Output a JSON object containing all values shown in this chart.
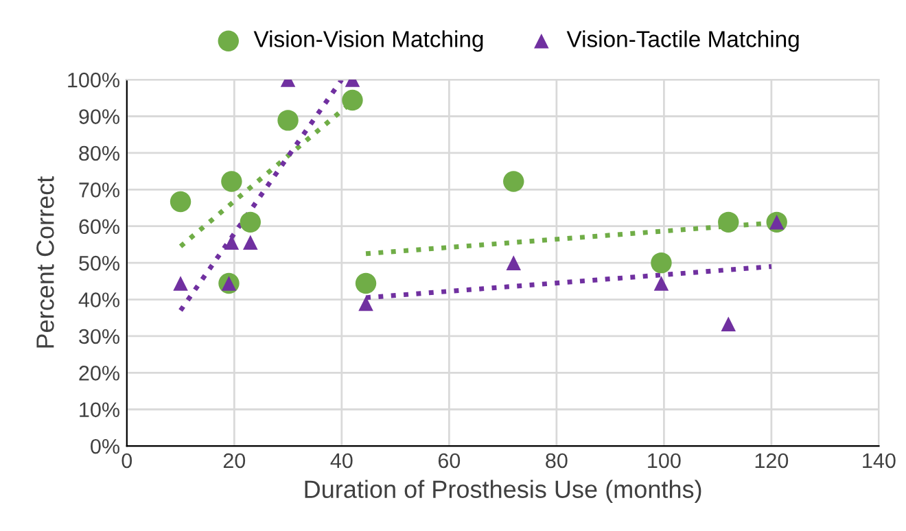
{
  "chart_data": {
    "type": "scatter",
    "xlabel": "Duration of Prosthesis Use (months)",
    "ylabel": "Percent Correct",
    "xlim": [
      0,
      140
    ],
    "xticks": [
      0,
      20,
      40,
      60,
      80,
      100,
      120,
      140
    ],
    "ylim": [
      0,
      100
    ],
    "yticks": [
      {
        "value": 0,
        "label": "0%"
      },
      {
        "value": 10,
        "label": "10%"
      },
      {
        "value": 20,
        "label": "20%"
      },
      {
        "value": 30,
        "label": "30%"
      },
      {
        "value": 40,
        "label": "40%"
      },
      {
        "value": 50,
        "label": "50%"
      },
      {
        "value": 60,
        "label": "60%"
      },
      {
        "value": 70,
        "label": "70%"
      },
      {
        "value": 80,
        "label": "80%"
      },
      {
        "value": 90,
        "label": "90%"
      },
      {
        "value": 100,
        "label": "100%"
      }
    ],
    "grid": true,
    "legend": "top",
    "series": [
      {
        "name": "Vision-Vision Matching",
        "color": "#70ad47",
        "marker": "circle",
        "x": [
          10,
          19.5,
          19,
          23,
          30,
          42,
          44.5,
          72,
          99.5,
          112,
          121
        ],
        "values": [
          66.7,
          72.2,
          44.4,
          61.1,
          88.9,
          94.4,
          44.4,
          72.2,
          50,
          61.1,
          61.1
        ]
      },
      {
        "name": "Vision-Tactile Matching",
        "color": "#7030a0",
        "marker": "triangle",
        "x": [
          10,
          19,
          19.5,
          23,
          30,
          42,
          44.5,
          72,
          99.5,
          112,
          121
        ],
        "values": [
          44.4,
          44.4,
          55.6,
          55.6,
          100,
          100,
          38.9,
          50,
          44.4,
          33.3,
          61.1
        ]
      },
      {
        "type": "line",
        "color": "#70ad47",
        "line_style": "dotted",
        "x": [
          10,
          42
        ],
        "values": [
          54.5,
          94
        ]
      },
      {
        "type": "line",
        "color": "#7030a0",
        "line_style": "dotted",
        "x": [
          10,
          40
        ],
        "values": [
          37,
          100
        ]
      },
      {
        "type": "line",
        "color": "#70ad47",
        "line_style": "dotted",
        "x": [
          44.5,
          121
        ],
        "values": [
          52.5,
          61
        ]
      },
      {
        "type": "line",
        "color": "#7030a0",
        "line_style": "dotted",
        "x": [
          44.5,
          120
        ],
        "values": [
          40.5,
          49
        ]
      }
    ]
  }
}
